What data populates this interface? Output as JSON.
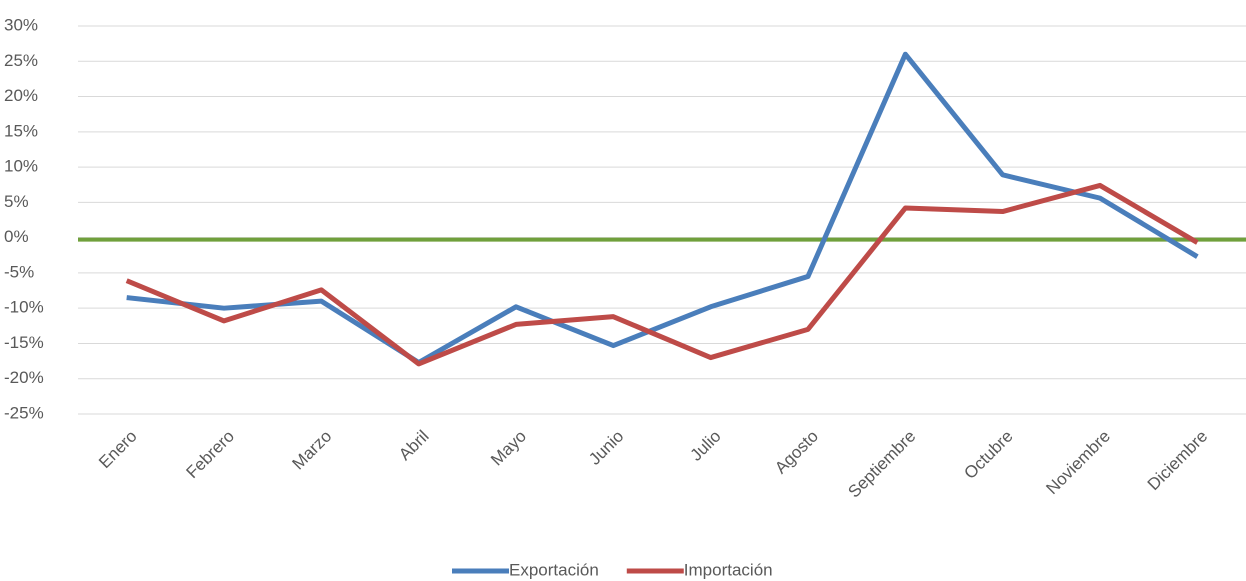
{
  "chart_data": {
    "type": "line",
    "categories": [
      "Enero",
      "Febrero",
      "Marzo",
      "Abril",
      "Mayo",
      "Junio",
      "Julio",
      "Agosto",
      "Septiembre",
      "Octubre",
      "Noviembre",
      "Diciembre"
    ],
    "series": [
      {
        "name": "Exportación",
        "color": "#4a7ebb",
        "values": [
          -8.5,
          -10,
          -9,
          -17.7,
          -9.8,
          -15.3,
          -9.8,
          -5.5,
          26,
          8.9,
          5.6,
          -2.7
        ]
      },
      {
        "name": "Importación",
        "color": "#be4b48",
        "values": [
          -6.1,
          -11.8,
          -7.4,
          -17.9,
          -12.3,
          -11.2,
          -17,
          -13,
          4.2,
          3.7,
          7.4,
          -0.7
        ]
      }
    ],
    "ylim": [
      -25,
      30
    ],
    "yticks": [
      {
        "value": -25,
        "label": "-25%"
      },
      {
        "value": -20,
        "label": "-20%"
      },
      {
        "value": -15,
        "label": "-15%"
      },
      {
        "value": -10,
        "label": "-10%"
      },
      {
        "value": -5,
        "label": "-5%"
      },
      {
        "value": 0,
        "label": "0%"
      },
      {
        "value": 5,
        "label": "5%"
      },
      {
        "value": 10,
        "label": "10%"
      },
      {
        "value": 15,
        "label": "15%"
      },
      {
        "value": 20,
        "label": "20%"
      },
      {
        "value": 25,
        "label": "25%"
      },
      {
        "value": 30,
        "label": "30%"
      }
    ],
    "grid": true,
    "zero_line_color": "#70a03c",
    "legend": "bottom"
  }
}
